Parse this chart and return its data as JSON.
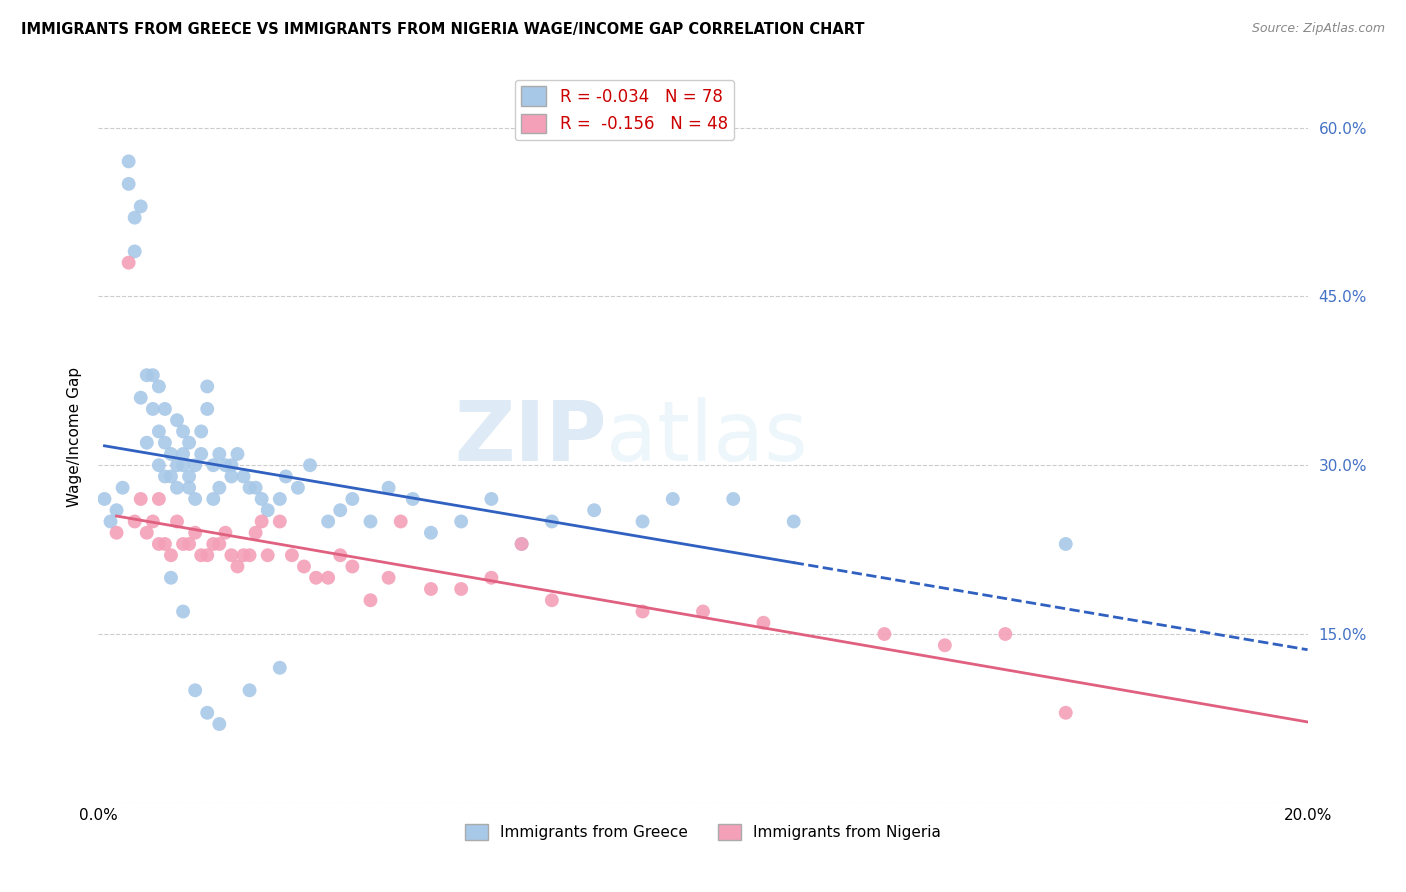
{
  "title": "IMMIGRANTS FROM GREECE VS IMMIGRANTS FROM NIGERIA WAGE/INCOME GAP CORRELATION CHART",
  "source": "Source: ZipAtlas.com",
  "ylabel": "Wage/Income Gap",
  "xlim": [
    0.0,
    0.2
  ],
  "ylim": [
    0.0,
    0.65
  ],
  "xticks": [
    0.0,
    0.05,
    0.1,
    0.15,
    0.2
  ],
  "yticks": [
    0.0,
    0.15,
    0.3,
    0.45,
    0.6
  ],
  "ytick_labels_right": [
    "",
    "15.0%",
    "30.0%",
    "45.0%",
    "60.0%"
  ],
  "greece_color": "#a8c8e8",
  "nigeria_color": "#f4a0b8",
  "greece_line_color": "#3060c0",
  "nigeria_line_color": "#e06080",
  "R_greece": -0.034,
  "N_greece": 78,
  "R_nigeria": -0.156,
  "N_nigeria": 48,
  "greece_x": [
    0.001,
    0.002,
    0.003,
    0.004,
    0.005,
    0.005,
    0.006,
    0.006,
    0.007,
    0.007,
    0.008,
    0.008,
    0.009,
    0.009,
    0.01,
    0.01,
    0.01,
    0.011,
    0.011,
    0.011,
    0.012,
    0.012,
    0.013,
    0.013,
    0.013,
    0.014,
    0.014,
    0.014,
    0.015,
    0.015,
    0.015,
    0.016,
    0.016,
    0.017,
    0.017,
    0.018,
    0.018,
    0.019,
    0.019,
    0.02,
    0.02,
    0.021,
    0.022,
    0.022,
    0.023,
    0.024,
    0.025,
    0.026,
    0.027,
    0.028,
    0.03,
    0.031,
    0.033,
    0.035,
    0.038,
    0.04,
    0.042,
    0.045,
    0.048,
    0.052,
    0.055,
    0.06,
    0.065,
    0.07,
    0.075,
    0.082,
    0.09,
    0.095,
    0.105,
    0.115,
    0.012,
    0.014,
    0.016,
    0.018,
    0.02,
    0.025,
    0.03,
    0.16
  ],
  "greece_y": [
    0.27,
    0.25,
    0.26,
    0.28,
    0.55,
    0.57,
    0.52,
    0.49,
    0.53,
    0.36,
    0.38,
    0.32,
    0.35,
    0.38,
    0.3,
    0.33,
    0.37,
    0.29,
    0.32,
    0.35,
    0.29,
    0.31,
    0.34,
    0.28,
    0.3,
    0.3,
    0.31,
    0.33,
    0.28,
    0.29,
    0.32,
    0.27,
    0.3,
    0.31,
    0.33,
    0.35,
    0.37,
    0.27,
    0.3,
    0.28,
    0.31,
    0.3,
    0.3,
    0.29,
    0.31,
    0.29,
    0.28,
    0.28,
    0.27,
    0.26,
    0.27,
    0.29,
    0.28,
    0.3,
    0.25,
    0.26,
    0.27,
    0.25,
    0.28,
    0.27,
    0.24,
    0.25,
    0.27,
    0.23,
    0.25,
    0.26,
    0.25,
    0.27,
    0.27,
    0.25,
    0.2,
    0.17,
    0.1,
    0.08,
    0.07,
    0.1,
    0.12,
    0.23
  ],
  "nigeria_x": [
    0.003,
    0.005,
    0.006,
    0.007,
    0.008,
    0.009,
    0.01,
    0.01,
    0.011,
    0.012,
    0.013,
    0.014,
    0.015,
    0.016,
    0.017,
    0.018,
    0.019,
    0.02,
    0.021,
    0.022,
    0.023,
    0.024,
    0.025,
    0.026,
    0.027,
    0.028,
    0.03,
    0.032,
    0.034,
    0.036,
    0.038,
    0.04,
    0.042,
    0.045,
    0.048,
    0.05,
    0.055,
    0.06,
    0.065,
    0.07,
    0.075,
    0.09,
    0.1,
    0.11,
    0.13,
    0.14,
    0.15,
    0.16
  ],
  "nigeria_y": [
    0.24,
    0.48,
    0.25,
    0.27,
    0.24,
    0.25,
    0.23,
    0.27,
    0.23,
    0.22,
    0.25,
    0.23,
    0.23,
    0.24,
    0.22,
    0.22,
    0.23,
    0.23,
    0.24,
    0.22,
    0.21,
    0.22,
    0.22,
    0.24,
    0.25,
    0.22,
    0.25,
    0.22,
    0.21,
    0.2,
    0.2,
    0.22,
    0.21,
    0.18,
    0.2,
    0.25,
    0.19,
    0.19,
    0.2,
    0.23,
    0.18,
    0.17,
    0.17,
    0.16,
    0.15,
    0.14,
    0.15,
    0.08
  ],
  "watermark_zip": "ZIP",
  "watermark_atlas": "atlas",
  "background_color": "#ffffff",
  "grid_color": "#cccccc",
  "legend_label_greece": "R = -0.034   N = 78",
  "legend_label_nigeria": "R =  -0.156   N = 48",
  "bottom_legend_greece": "Immigrants from Greece",
  "bottom_legend_nigeria": "Immigrants from Nigeria"
}
